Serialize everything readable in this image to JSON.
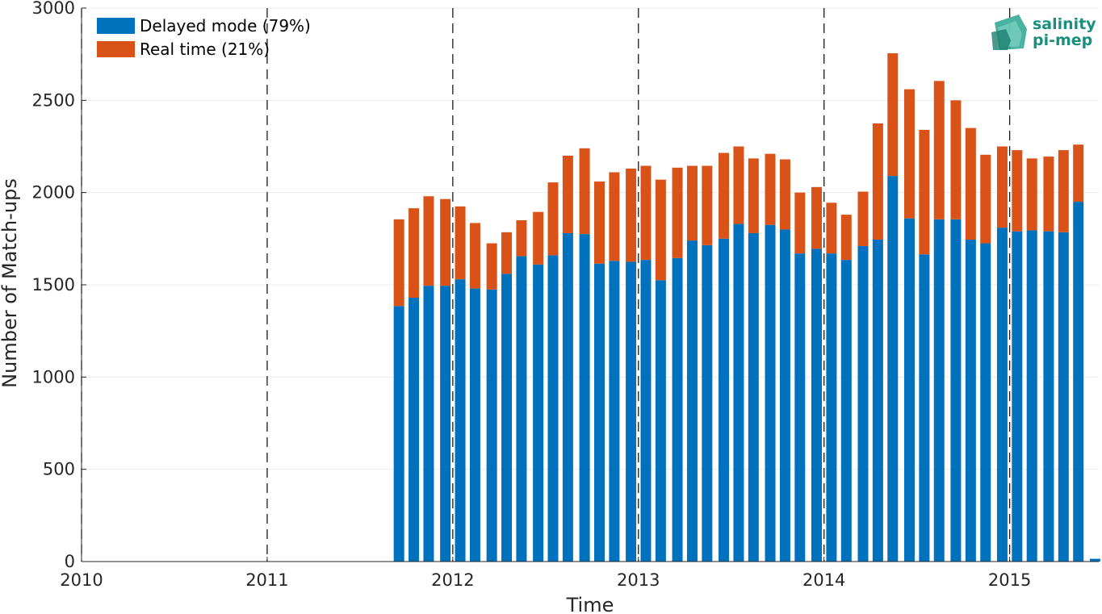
{
  "chart_data": {
    "type": "bar",
    "stacked": true,
    "xlabel": "Time",
    "ylabel": "Number of Match-ups",
    "ylim": [
      0,
      3000
    ],
    "y_ticks": [
      0,
      500,
      1000,
      1500,
      2000,
      2500,
      3000
    ],
    "xlim": [
      2010,
      2015.48
    ],
    "x_ticks": [
      2010,
      2011,
      2012,
      2013,
      2014,
      2015
    ],
    "x_tick_labels": [
      "2010",
      "2011",
      "2012",
      "2013",
      "2014",
      "2015"
    ],
    "year_dividers": [
      2010,
      2011,
      2012,
      2013,
      2014,
      2015
    ],
    "grid": true,
    "legend_position": "top-left",
    "series": [
      {
        "name": "Delayed mode (79%)",
        "color": "#0072BD"
      },
      {
        "name": "Real time (21%)",
        "color": "#D95319"
      }
    ],
    "x": [
      "2011-09",
      "2011-10",
      "2011-11",
      "2011-12",
      "2012-01",
      "2012-02",
      "2012-03",
      "2012-04",
      "2012-05",
      "2012-06",
      "2012-07",
      "2012-08",
      "2012-09",
      "2012-10",
      "2012-11",
      "2012-12",
      "2013-01",
      "2013-02",
      "2013-03",
      "2013-04",
      "2013-05",
      "2013-06",
      "2013-07",
      "2013-08",
      "2013-09",
      "2013-10",
      "2013-11",
      "2013-12",
      "2014-01",
      "2014-02",
      "2014-03",
      "2014-04",
      "2014-05",
      "2014-06",
      "2014-07",
      "2014-08",
      "2014-09",
      "2014-10",
      "2014-11",
      "2014-12",
      "2015-01",
      "2015-02",
      "2015-03",
      "2015-04",
      "2015-05",
      "2015-06",
      "2015-07"
    ],
    "x_decimal": [
      2011.71,
      2011.79,
      2011.87,
      2011.96,
      2012.04,
      2012.12,
      2012.21,
      2012.29,
      2012.37,
      2012.46,
      2012.54,
      2012.62,
      2012.71,
      2012.79,
      2012.87,
      2012.96,
      2013.04,
      2013.12,
      2013.21,
      2013.29,
      2013.37,
      2013.46,
      2013.54,
      2013.62,
      2013.71,
      2013.79,
      2013.87,
      2013.96,
      2014.04,
      2014.12,
      2014.21,
      2014.29,
      2014.37,
      2014.46,
      2014.54,
      2014.62,
      2014.71,
      2014.79,
      2014.87,
      2014.96,
      2015.04,
      2015.12,
      2015.21,
      2015.29,
      2015.37,
      2015.46,
      2015.54
    ],
    "delayed_mode": [
      1385,
      1430,
      1495,
      1495,
      1530,
      1480,
      1475,
      1560,
      1655,
      1610,
      1660,
      1780,
      1775,
      1615,
      1630,
      1625,
      1635,
      1525,
      1645,
      1740,
      1715,
      1750,
      1830,
      1780,
      1825,
      1800,
      1670,
      1695,
      1670,
      1635,
      1710,
      1745,
      2090,
      1860,
      1665,
      1855,
      1855,
      1745,
      1725,
      1810,
      1790,
      1795,
      1790,
      1785,
      1950,
      15,
      0
    ],
    "real_time": [
      470,
      485,
      485,
      470,
      395,
      355,
      250,
      225,
      195,
      285,
      395,
      420,
      465,
      445,
      480,
      505,
      510,
      545,
      490,
      405,
      430,
      465,
      420,
      405,
      385,
      380,
      330,
      335,
      275,
      245,
      295,
      630,
      665,
      700,
      675,
      750,
      645,
      605,
      480,
      440,
      440,
      390,
      405,
      445,
      310,
      0,
      0
    ]
  },
  "logo": {
    "line1": "salinity",
    "line2": "pi-mep"
  }
}
